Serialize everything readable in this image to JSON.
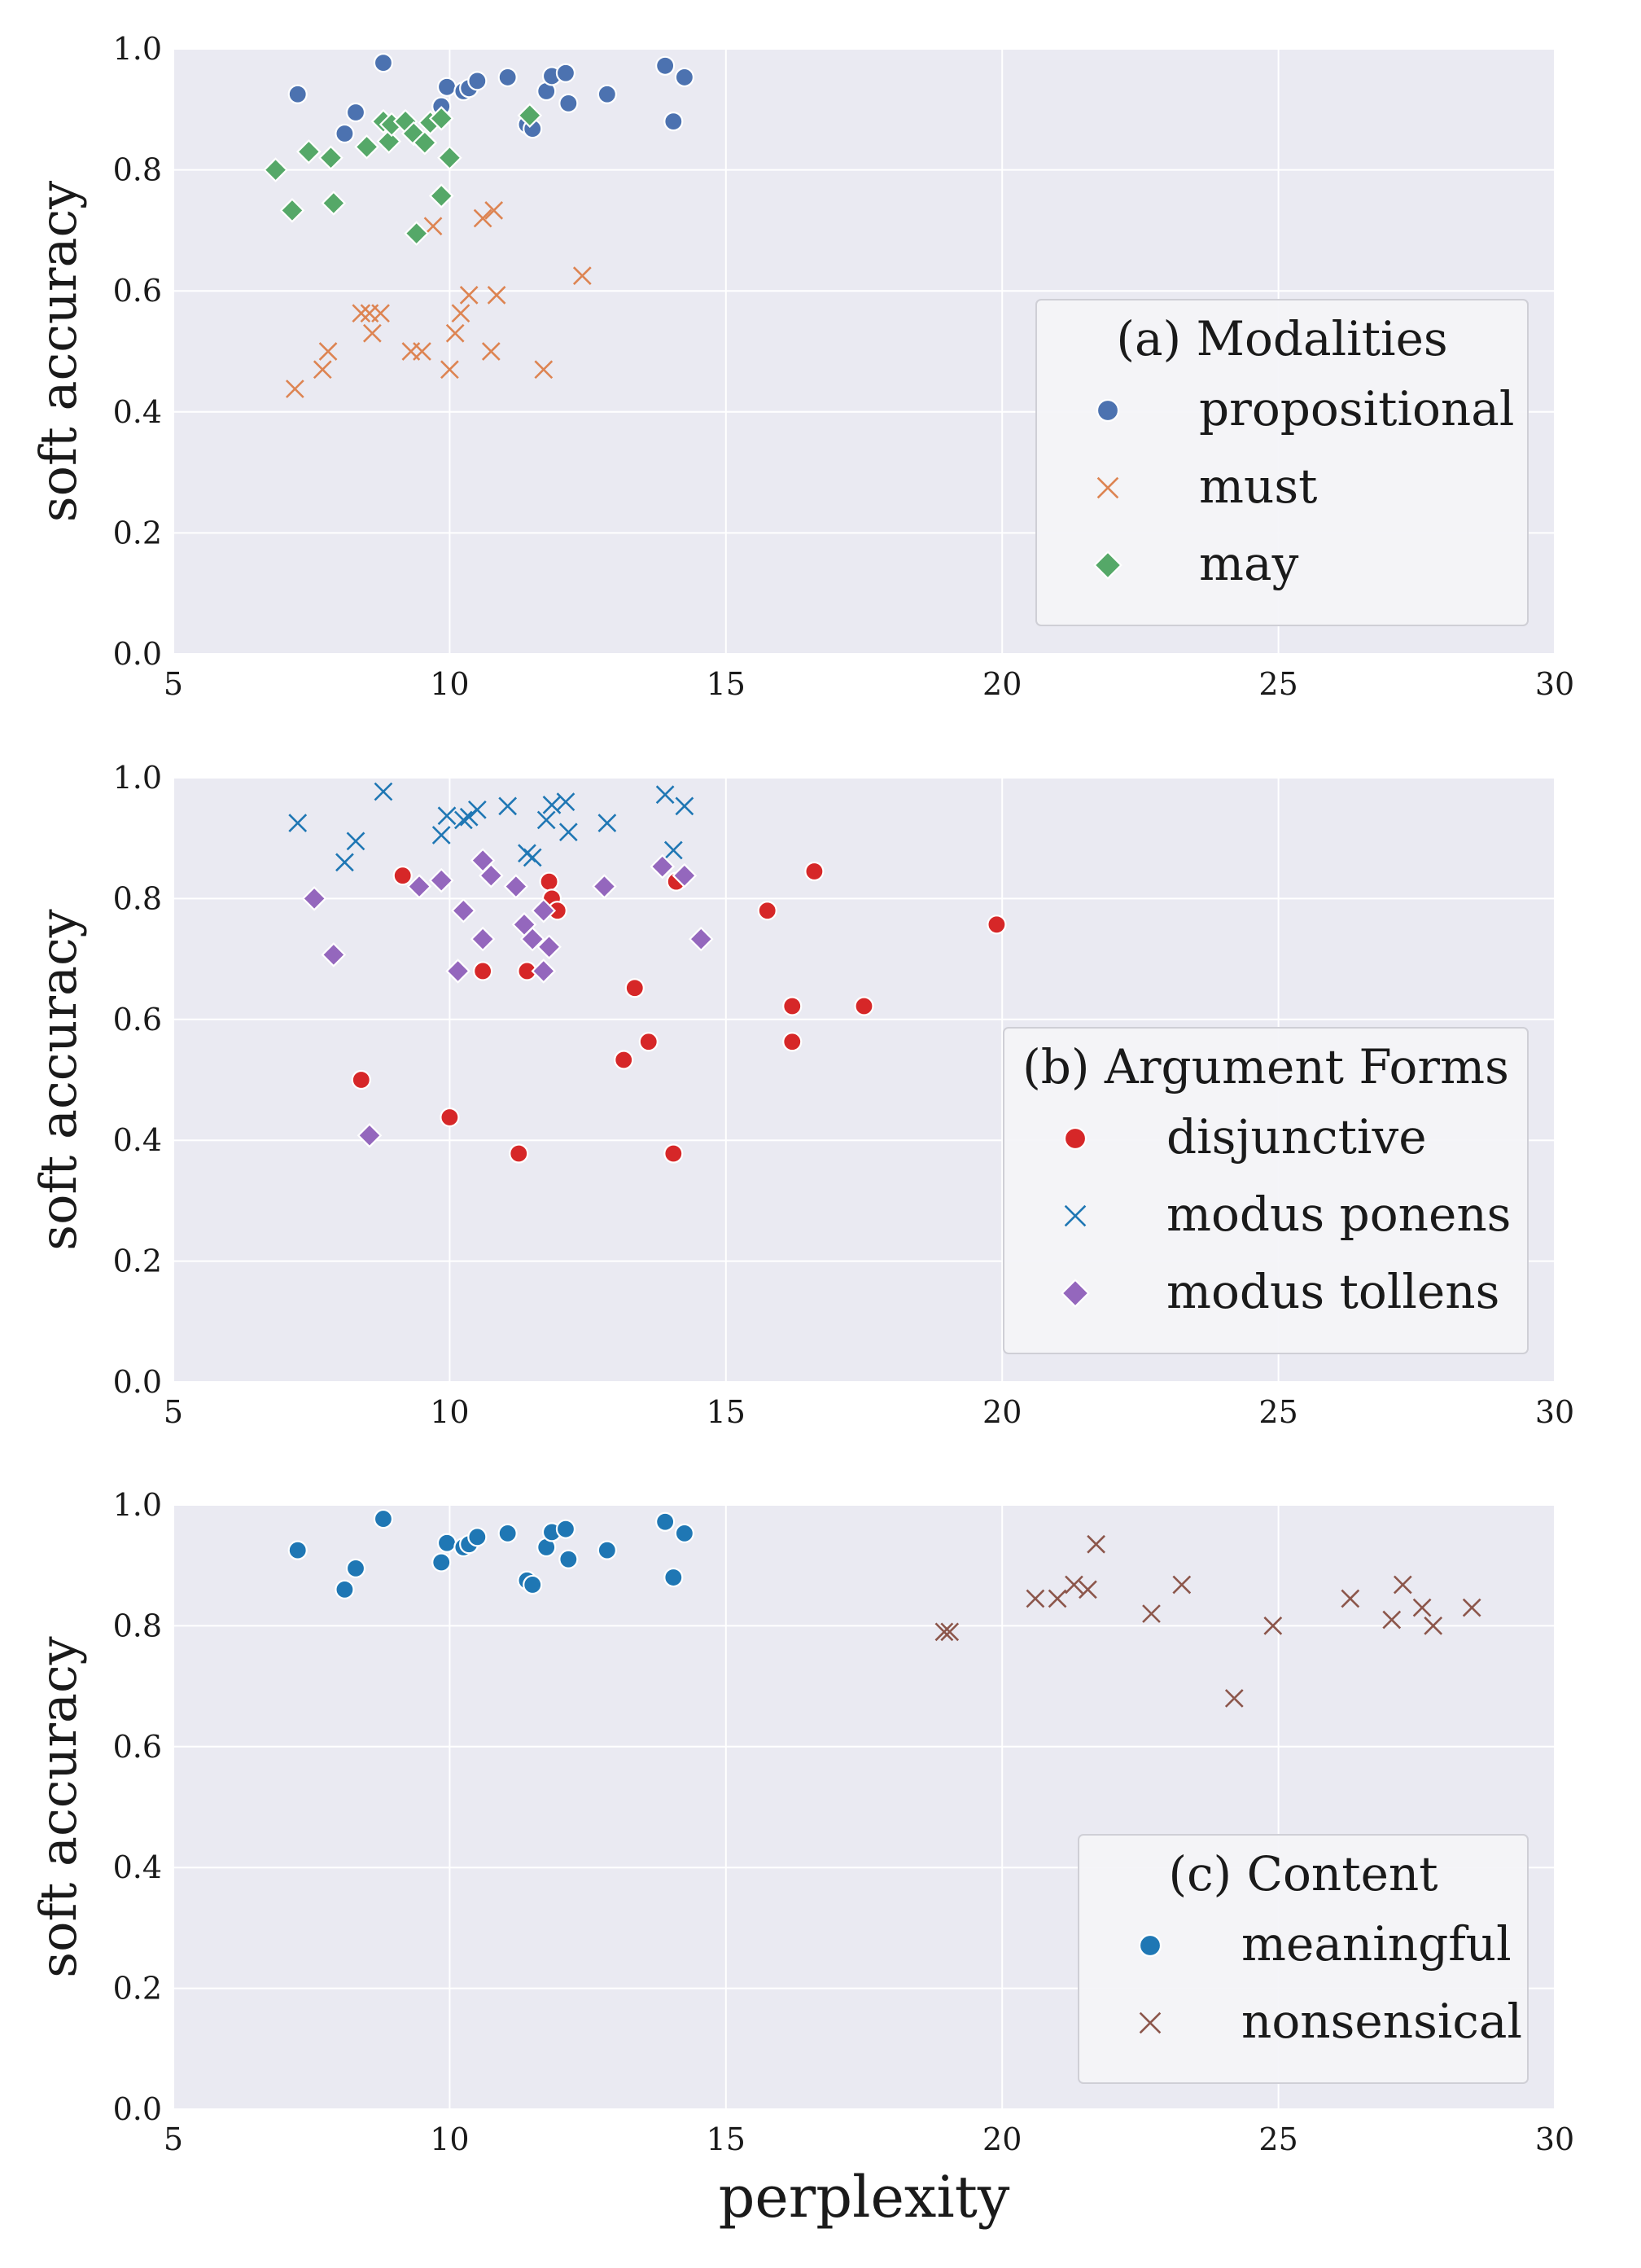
{
  "chart_data": [
    {
      "type": "scatter",
      "xlabel": "",
      "ylabel": "soft accuracy",
      "xlim": [
        5,
        30
      ],
      "ylim": [
        0,
        1
      ],
      "xticks": [
        "5",
        "10",
        "15",
        "20",
        "25",
        "30"
      ],
      "yticks": [
        "0.0",
        "0.2",
        "0.4",
        "0.6",
        "0.8",
        "1.0"
      ],
      "grid": true,
      "legend": {
        "title": "(a) Modalities",
        "position": "right"
      },
      "series": [
        {
          "name": "propositional",
          "marker": "circle",
          "color": "#4c72b0",
          "points": [
            [
              7.25,
              0.925
            ],
            [
              8.1,
              0.86
            ],
            [
              8.3,
              0.895
            ],
            [
              8.8,
              0.977
            ],
            [
              9.85,
              0.905
            ],
            [
              9.95,
              0.937
            ],
            [
              10.25,
              0.93
            ],
            [
              10.35,
              0.935
            ],
            [
              10.5,
              0.947
            ],
            [
              11.05,
              0.953
            ],
            [
              11.4,
              0.875
            ],
            [
              11.5,
              0.868
            ],
            [
              11.75,
              0.93
            ],
            [
              11.85,
              0.955
            ],
            [
              12.1,
              0.96
            ],
            [
              12.15,
              0.91
            ],
            [
              12.85,
              0.925
            ],
            [
              13.9,
              0.972
            ],
            [
              14.05,
              0.88
            ],
            [
              14.25,
              0.953
            ]
          ]
        },
        {
          "name": "must",
          "marker": "x",
          "color": "#dd8452",
          "points": [
            [
              7.2,
              0.438
            ],
            [
              7.7,
              0.47
            ],
            [
              7.8,
              0.5
            ],
            [
              8.4,
              0.563
            ],
            [
              8.55,
              0.563
            ],
            [
              8.6,
              0.53
            ],
            [
              8.75,
              0.563
            ],
            [
              9.3,
              0.5
            ],
            [
              9.5,
              0.5
            ],
            [
              9.7,
              0.707
            ],
            [
              10.0,
              0.47
            ],
            [
              10.1,
              0.53
            ],
            [
              10.2,
              0.563
            ],
            [
              10.35,
              0.593
            ],
            [
              10.6,
              0.72
            ],
            [
              10.75,
              0.5
            ],
            [
              10.8,
              0.733
            ],
            [
              10.85,
              0.593
            ],
            [
              11.7,
              0.47
            ],
            [
              12.4,
              0.625
            ]
          ]
        },
        {
          "name": "may",
          "marker": "diamond",
          "color": "#55a868",
          "points": [
            [
              6.85,
              0.8
            ],
            [
              7.15,
              0.733
            ],
            [
              7.45,
              0.83
            ],
            [
              7.85,
              0.82
            ],
            [
              7.9,
              0.745
            ],
            [
              8.5,
              0.838
            ],
            [
              8.8,
              0.88
            ],
            [
              8.9,
              0.847
            ],
            [
              8.95,
              0.875
            ],
            [
              9.2,
              0.88
            ],
            [
              9.35,
              0.86
            ],
            [
              9.4,
              0.695
            ],
            [
              9.55,
              0.845
            ],
            [
              9.65,
              0.878
            ],
            [
              9.85,
              0.885
            ],
            [
              9.85,
              0.757
            ],
            [
              10.0,
              0.82
            ],
            [
              11.45,
              0.89
            ]
          ]
        }
      ]
    },
    {
      "type": "scatter",
      "xlabel": "",
      "ylabel": "soft accuracy",
      "xlim": [
        5,
        30
      ],
      "ylim": [
        0,
        1
      ],
      "xticks": [
        "5",
        "10",
        "15",
        "20",
        "25",
        "30"
      ],
      "yticks": [
        "0.0",
        "0.2",
        "0.4",
        "0.6",
        "0.8",
        "1.0"
      ],
      "grid": true,
      "legend": {
        "title": "(b) Argument Forms",
        "position": "right"
      },
      "series": [
        {
          "name": "disjunctive",
          "marker": "circle",
          "color": "#d62728",
          "points": [
            [
              8.4,
              0.5
            ],
            [
              9.15,
              0.838
            ],
            [
              10.0,
              0.438
            ],
            [
              10.6,
              0.68
            ],
            [
              11.25,
              0.378
            ],
            [
              11.4,
              0.68
            ],
            [
              11.8,
              0.828
            ],
            [
              11.85,
              0.8
            ],
            [
              11.95,
              0.78
            ],
            [
              13.15,
              0.533
            ],
            [
              13.35,
              0.652
            ],
            [
              13.6,
              0.563
            ],
            [
              14.05,
              0.378
            ],
            [
              14.1,
              0.828
            ],
            [
              15.75,
              0.78
            ],
            [
              16.2,
              0.622
            ],
            [
              16.2,
              0.563
            ],
            [
              16.6,
              0.845
            ],
            [
              17.5,
              0.622
            ],
            [
              19.9,
              0.757
            ]
          ]
        },
        {
          "name": "modus ponens",
          "marker": "x",
          "color": "#1f77b4",
          "points": [
            [
              7.25,
              0.925
            ],
            [
              8.1,
              0.86
            ],
            [
              8.3,
              0.895
            ],
            [
              8.8,
              0.977
            ],
            [
              9.85,
              0.905
            ],
            [
              9.95,
              0.937
            ],
            [
              10.25,
              0.93
            ],
            [
              10.35,
              0.935
            ],
            [
              10.5,
              0.947
            ],
            [
              11.05,
              0.953
            ],
            [
              11.4,
              0.875
            ],
            [
              11.5,
              0.868
            ],
            [
              11.75,
              0.93
            ],
            [
              11.85,
              0.955
            ],
            [
              12.1,
              0.96
            ],
            [
              12.15,
              0.91
            ],
            [
              12.85,
              0.925
            ],
            [
              13.9,
              0.972
            ],
            [
              14.05,
              0.88
            ],
            [
              14.25,
              0.953
            ]
          ]
        },
        {
          "name": "modus tollens",
          "marker": "diamond",
          "color": "#9467bd",
          "points": [
            [
              7.55,
              0.8
            ],
            [
              7.9,
              0.707
            ],
            [
              8.55,
              0.408
            ],
            [
              9.45,
              0.82
            ],
            [
              9.85,
              0.83
            ],
            [
              10.15,
              0.68
            ],
            [
              10.25,
              0.78
            ],
            [
              10.6,
              0.733
            ],
            [
              10.6,
              0.863
            ],
            [
              10.75,
              0.838
            ],
            [
              11.2,
              0.82
            ],
            [
              11.35,
              0.757
            ],
            [
              11.5,
              0.733
            ],
            [
              11.7,
              0.78
            ],
            [
              11.7,
              0.68
            ],
            [
              11.8,
              0.72
            ],
            [
              12.8,
              0.82
            ],
            [
              13.85,
              0.853
            ],
            [
              14.25,
              0.838
            ],
            [
              14.55,
              0.733
            ]
          ]
        }
      ]
    },
    {
      "type": "scatter",
      "xlabel": "perplexity",
      "ylabel": "soft accuracy",
      "xlim": [
        5,
        30
      ],
      "ylim": [
        0,
        1
      ],
      "xticks": [
        "5",
        "10",
        "15",
        "20",
        "25",
        "30"
      ],
      "yticks": [
        "0.0",
        "0.2",
        "0.4",
        "0.6",
        "0.8",
        "1.0"
      ],
      "grid": true,
      "legend": {
        "title": "(c) Content",
        "position": "right"
      },
      "series": [
        {
          "name": "meaningful",
          "marker": "circle",
          "color": "#1f77b4",
          "points": [
            [
              7.25,
              0.925
            ],
            [
              8.1,
              0.86
            ],
            [
              8.3,
              0.895
            ],
            [
              8.8,
              0.977
            ],
            [
              9.85,
              0.905
            ],
            [
              9.95,
              0.937
            ],
            [
              10.25,
              0.93
            ],
            [
              10.35,
              0.935
            ],
            [
              10.5,
              0.947
            ],
            [
              11.05,
              0.953
            ],
            [
              11.4,
              0.875
            ],
            [
              11.5,
              0.868
            ],
            [
              11.75,
              0.93
            ],
            [
              11.85,
              0.955
            ],
            [
              12.1,
              0.96
            ],
            [
              12.15,
              0.91
            ],
            [
              12.85,
              0.925
            ],
            [
              13.9,
              0.972
            ],
            [
              14.05,
              0.88
            ],
            [
              14.25,
              0.953
            ]
          ]
        },
        {
          "name": "nonsensical",
          "marker": "x",
          "color": "#8c564b",
          "points": [
            [
              18.95,
              0.79
            ],
            [
              19.05,
              0.79
            ],
            [
              20.6,
              0.845
            ],
            [
              21.0,
              0.845
            ],
            [
              21.3,
              0.868
            ],
            [
              21.55,
              0.86
            ],
            [
              21.7,
              0.935
            ],
            [
              22.7,
              0.82
            ],
            [
              23.25,
              0.868
            ],
            [
              24.2,
              0.68
            ],
            [
              24.9,
              0.8
            ],
            [
              26.3,
              0.845
            ],
            [
              27.05,
              0.81
            ],
            [
              27.25,
              0.868
            ],
            [
              27.6,
              0.83
            ],
            [
              27.8,
              0.8
            ],
            [
              28.5,
              0.83
            ]
          ]
        }
      ]
    }
  ]
}
